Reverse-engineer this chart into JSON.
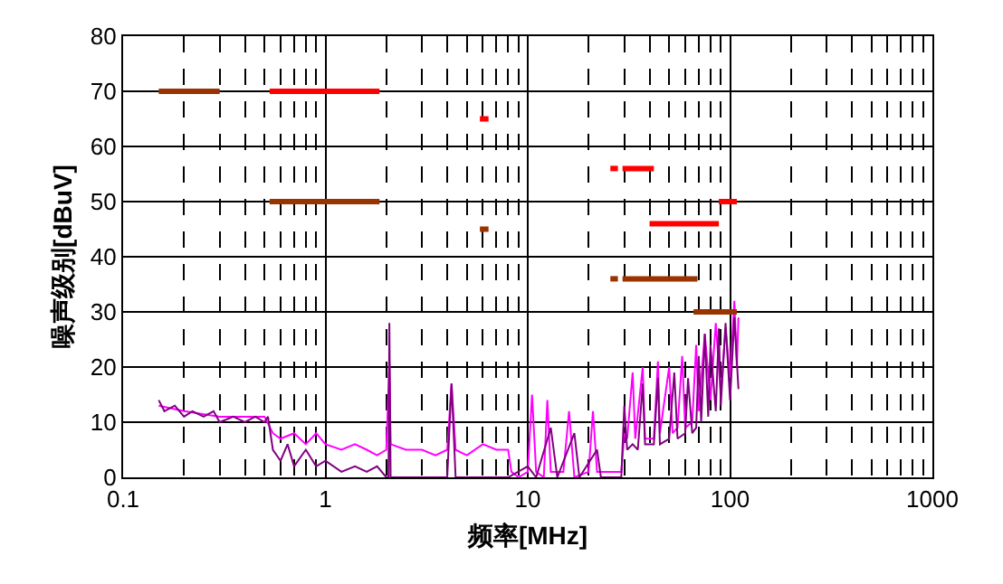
{
  "chart_data": {
    "type": "line",
    "xlabel": "频率[MHz]",
    "ylabel": "噪声级别[dBuV]",
    "log": "x",
    "xlim": [
      0.1,
      1000
    ],
    "xticks": [
      0.1,
      1,
      10,
      100,
      1000
    ],
    "ylim": [
      0,
      80
    ],
    "yticks": [
      0,
      10,
      20,
      30,
      40,
      50,
      60,
      70,
      80
    ],
    "grid": true,
    "marker": "none",
    "line_style": "solid",
    "series": [
      {
        "color": "#ff00ff",
        "x": [
          0.15,
          0.2,
          0.3,
          0.4,
          0.5,
          0.55,
          0.6,
          0.7,
          0.8,
          0.9,
          1.0,
          1.2,
          1.4,
          1.6,
          1.8,
          2.0,
          2.07,
          2.1,
          2.5,
          3,
          3.5,
          4,
          4.2,
          4.4,
          5,
          6,
          7,
          8,
          8.3,
          9,
          10,
          10.5,
          11,
          12,
          12.5,
          13,
          15,
          16,
          17,
          20,
          21,
          22,
          25,
          29,
          30,
          31,
          33,
          34,
          37,
          38,
          42,
          44,
          45,
          50,
          52,
          55,
          58,
          60,
          65,
          68,
          70,
          75,
          80,
          85,
          90,
          95,
          100,
          105,
          108,
          110
        ],
        "values": [
          13,
          12,
          11,
          11,
          11,
          8,
          7,
          8,
          6,
          8,
          6,
          5,
          6,
          5,
          4,
          5,
          21,
          6,
          5,
          5,
          4,
          5,
          17,
          5,
          4,
          6,
          5,
          5,
          1,
          0,
          1,
          15,
          1,
          0,
          14,
          1,
          1,
          12,
          0,
          1,
          12,
          1,
          1,
          1,
          8,
          7,
          19,
          7,
          20,
          7,
          7,
          21,
          8,
          20,
          8,
          9,
          22,
          9,
          10,
          24,
          12,
          26,
          14,
          28,
          15,
          27,
          18,
          32,
          20,
          29
        ]
      },
      {
        "color": "#800080",
        "x": [
          0.15,
          0.16,
          0.18,
          0.2,
          0.22,
          0.25,
          0.28,
          0.3,
          0.35,
          0.4,
          0.45,
          0.5,
          0.52,
          0.55,
          0.6,
          0.65,
          0.7,
          0.8,
          0.9,
          1.0,
          1.2,
          1.4,
          1.6,
          1.8,
          2.0,
          2.05,
          2.07,
          2.1,
          4,
          4.2,
          4.4,
          8,
          10,
          11,
          13,
          14,
          17,
          18,
          22,
          23,
          27,
          29,
          30,
          31,
          33,
          35,
          37,
          38,
          42,
          44,
          45,
          50,
          53,
          55,
          60,
          62,
          65,
          68,
          70,
          72,
          75,
          78,
          80,
          85,
          88,
          90,
          95,
          100,
          105,
          110
        ],
        "values": [
          14,
          12,
          13,
          11,
          12,
          11,
          12,
          10,
          11,
          10,
          11,
          10,
          11,
          5,
          3,
          6,
          2,
          5,
          2,
          3,
          1,
          2,
          1,
          2,
          0,
          0,
          28,
          0,
          0,
          17,
          0,
          0,
          2,
          0,
          9,
          0,
          8,
          0,
          5,
          0,
          0,
          0,
          13,
          5,
          6,
          5,
          17,
          6,
          6,
          18,
          6,
          7,
          19,
          7,
          8,
          18,
          8,
          9,
          22,
          10,
          26,
          11,
          24,
          12,
          27,
          13,
          28,
          14,
          29,
          16
        ]
      },
      {
        "color": "#993300",
        "x": [
          0.15,
          0.3
        ],
        "values": [
          70,
          70
        ]
      },
      {
        "color": "#ff0000",
        "x": [
          0.53,
          1.85
        ],
        "values": [
          70,
          70
        ]
      },
      {
        "color": "#993300",
        "x": [
          0.53,
          1.85
        ],
        "values": [
          50,
          50
        ]
      },
      {
        "color": "#ff0000",
        "x": [
          5.8,
          6.4
        ],
        "values": [
          65,
          65
        ]
      },
      {
        "color": "#993300",
        "x": [
          5.8,
          6.4
        ],
        "values": [
          45,
          45
        ]
      },
      {
        "color": "#ff0000",
        "x": [
          25.6,
          27.9
        ],
        "values": [
          56,
          56
        ]
      },
      {
        "color": "#ff0000",
        "x": [
          29.4,
          42
        ],
        "values": [
          56,
          56
        ]
      },
      {
        "color": "#993300",
        "x": [
          25.6,
          27.9
        ],
        "values": [
          36,
          36
        ]
      },
      {
        "color": "#993300",
        "x": [
          29.4,
          69
        ],
        "values": [
          36,
          36
        ]
      },
      {
        "color": "#ff0000",
        "x": [
          40,
          88
        ],
        "values": [
          46,
          46
        ]
      },
      {
        "color": "#ff0000",
        "x": [
          88,
          108
        ],
        "values": [
          50,
          50
        ]
      },
      {
        "color": "#993300",
        "x": [
          66,
          108
        ],
        "values": [
          30,
          30
        ]
      }
    ]
  }
}
